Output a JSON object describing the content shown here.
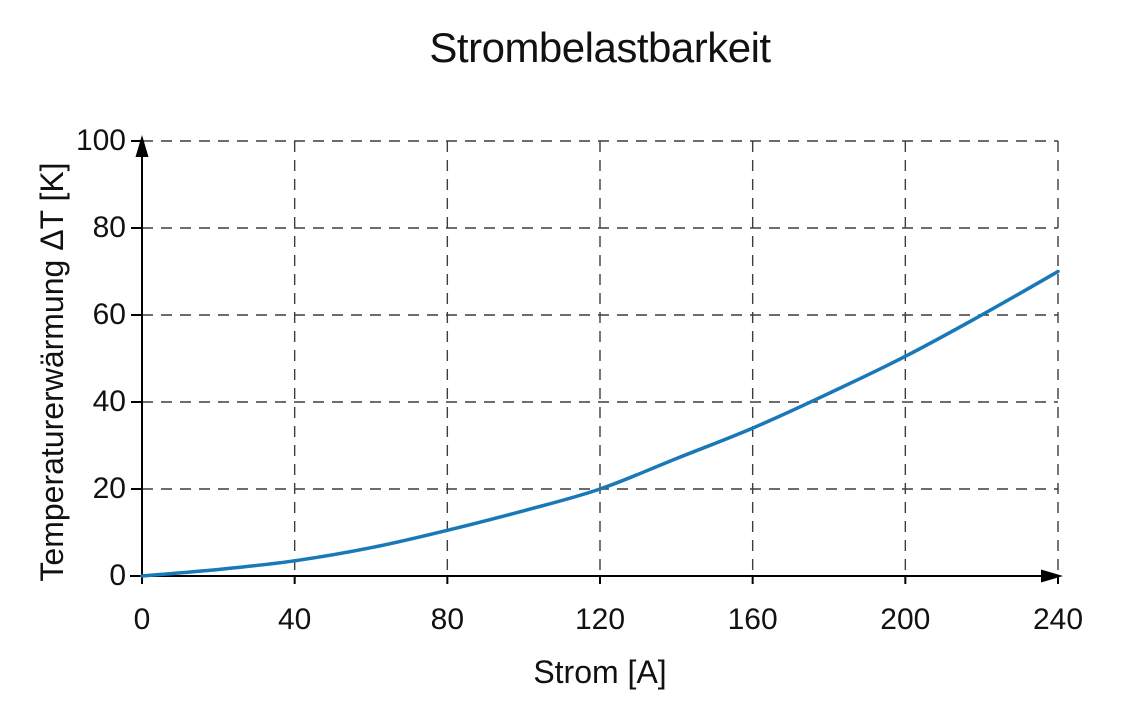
{
  "chart_data": {
    "type": "line",
    "title": "Strombelastbarkeit",
    "xlabel": "Strom [A]",
    "ylabel": "Temperaturerwärmung ΔT [K]",
    "xlim": [
      0,
      240
    ],
    "ylim": [
      0,
      100
    ],
    "x_ticks": [
      0,
      40,
      80,
      120,
      160,
      200,
      240
    ],
    "y_ticks": [
      0,
      20,
      40,
      60,
      80,
      100
    ],
    "grid": "dashed",
    "legend_position": "none",
    "axis_arrows": true,
    "series": [
      {
        "name": "Temperaturerwärmung ΔT",
        "color": "#1878b8",
        "x": [
          0,
          20,
          40,
          60,
          80,
          100,
          120,
          140,
          160,
          180,
          200,
          220,
          240
        ],
        "y": [
          0,
          1.5,
          3.5,
          6.5,
          10.5,
          15,
          20,
          27,
          34,
          42,
          50.5,
          60,
          70
        ]
      }
    ]
  },
  "colors": {
    "line": "#1878b8",
    "grid": "#3d3d3d",
    "axis": "#000000",
    "text": "#1a1a1a",
    "background": "#ffffff"
  }
}
